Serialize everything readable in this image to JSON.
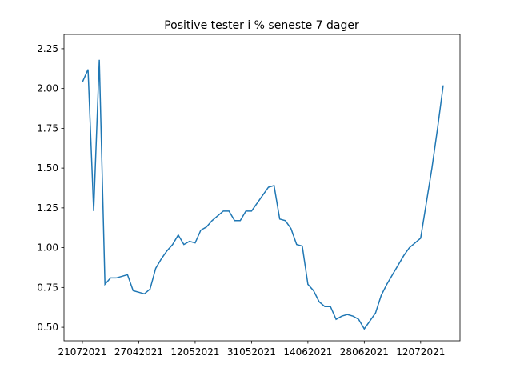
{
  "chart_data": {
    "type": "line",
    "title": "Positive tester i % seneste 7 dager",
    "categories": [
      "21072021",
      null,
      null,
      null,
      null,
      null,
      null,
      null,
      null,
      null,
      "27042021",
      null,
      null,
      null,
      null,
      null,
      null,
      null,
      null,
      null,
      "12052021",
      null,
      null,
      null,
      null,
      null,
      null,
      null,
      null,
      null,
      "31052021",
      null,
      null,
      null,
      null,
      null,
      null,
      null,
      null,
      null,
      "14062021",
      null,
      null,
      null,
      null,
      null,
      null,
      null,
      null,
      null,
      "28062021",
      null,
      null,
      null,
      null,
      null,
      null,
      null,
      null,
      null,
      "12072021",
      null,
      null,
      null,
      null
    ],
    "series": [
      {
        "color": "#1f77b4",
        "values": [
          2.04,
          2.12,
          1.23,
          2.18,
          0.77,
          0.81,
          0.81,
          0.82,
          0.83,
          0.73,
          0.72,
          0.71,
          0.74,
          0.87,
          0.93,
          0.98,
          1.02,
          1.08,
          1.02,
          1.04,
          1.03,
          1.11,
          1.13,
          1.17,
          1.2,
          1.23,
          1.23,
          1.17,
          1.17,
          1.23,
          1.23,
          1.28,
          1.33,
          1.38,
          1.39,
          1.18,
          1.17,
          1.12,
          1.02,
          1.01,
          0.77,
          0.73,
          0.66,
          0.63,
          0.63,
          0.55,
          0.57,
          0.58,
          0.57,
          0.55,
          0.49,
          0.54,
          0.59,
          0.7,
          0.77,
          0.83,
          0.89,
          0.95,
          1.0,
          1.03,
          1.06,
          1.28,
          1.5,
          1.75,
          2.02
        ]
      }
    ],
    "ylim": [
      0.415,
      2.34
    ],
    "yticks": [
      {
        "value": 0.5,
        "label": "0.50"
      },
      {
        "value": 0.75,
        "label": "0.75"
      },
      {
        "value": 1.0,
        "label": "1.00"
      },
      {
        "value": 1.25,
        "label": "1.25"
      },
      {
        "value": 1.5,
        "label": "1.50"
      },
      {
        "value": 1.75,
        "label": "1.75"
      },
      {
        "value": 2.0,
        "label": "2.00"
      },
      {
        "value": 2.25,
        "label": "2.25"
      }
    ]
  }
}
